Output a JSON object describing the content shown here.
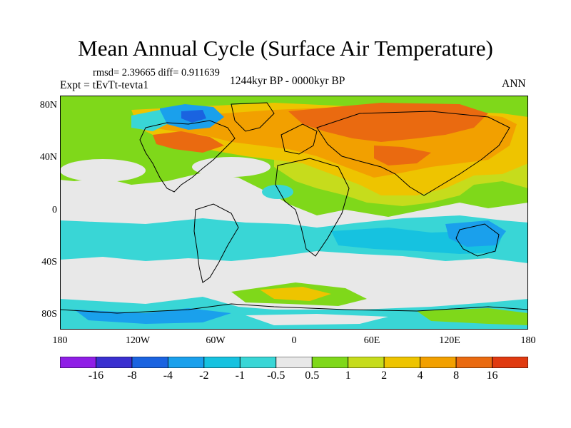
{
  "header": {
    "title": "Mean Annual Cycle (Surface Air Temperature)",
    "stats": "rmsd= 2.39665 diff= 0.911639",
    "experiment": "Expt = tEvTt-tevta1",
    "period": "1244kyr BP - 0000kyr BP",
    "season": "ANN"
  },
  "map_axes": {
    "lat_labels": [
      "80N",
      "40N",
      "0",
      "40S",
      "80S"
    ],
    "lon_labels": [
      "180",
      "120W",
      "60W",
      "0",
      "60E",
      "120E",
      "180"
    ]
  },
  "colorbar": {
    "labels": [
      "-16",
      "-8",
      "-4",
      "-2",
      "-1",
      "-0.5",
      "0.5",
      "1",
      "2",
      "4",
      "8",
      "16"
    ],
    "colors": [
      "#8f1ee6",
      "#3a2fd0",
      "#1a63e0",
      "#1aa0ec",
      "#16c2e0",
      "#39d6d6",
      "#e8e8e8",
      "#7fd81a",
      "#c6dc1c",
      "#eec400",
      "#f2a000",
      "#ea6a10",
      "#e03a10"
    ]
  }
}
